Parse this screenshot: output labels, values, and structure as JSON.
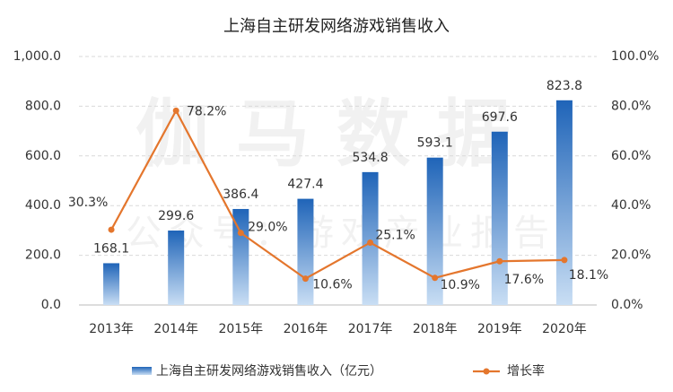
{
  "chart_data": {
    "type": "combo",
    "title": "上海自主研发网络游戏销售收入",
    "watermark": [
      "伽马数据",
      "公众号：游戏产业报告"
    ],
    "categories": [
      "2013年",
      "2014年",
      "2015年",
      "2016年",
      "2017年",
      "2018年",
      "2019年",
      "2020年"
    ],
    "series": [
      {
        "name": "上海自主研发网络游戏销售收入（亿元）",
        "type": "bar",
        "color": "#1f64b8",
        "values": [
          168.1,
          299.6,
          386.4,
          427.4,
          534.8,
          593.1,
          697.6,
          823.8
        ]
      },
      {
        "name": "增长率",
        "type": "line",
        "axis": "y2",
        "color": "#e4762d",
        "values": [
          30.3,
          78.2,
          29.0,
          10.6,
          25.1,
          10.9,
          17.6,
          18.1
        ],
        "value_labels": [
          "30.3%",
          "78.2%",
          "29.0%",
          "10.6%",
          "25.1%",
          "10.9%",
          "17.6%",
          "18.1%"
        ]
      }
    ],
    "ylim": [
      0,
      1000
    ],
    "yticks": [
      {
        "value": 0,
        "label": "0.0"
      },
      {
        "value": 200,
        "label": "200.0"
      },
      {
        "value": 400,
        "label": "400.0"
      },
      {
        "value": 600,
        "label": "600.0"
      },
      {
        "value": 800,
        "label": "800.0"
      },
      {
        "value": 1000,
        "label": "1,000.0"
      }
    ],
    "y2lim": [
      0,
      100
    ],
    "y2ticks": [
      {
        "value": 0,
        "label": "0.0%"
      },
      {
        "value": 20,
        "label": "20.0%"
      },
      {
        "value": 40,
        "label": "40.0%"
      },
      {
        "value": 60,
        "label": "60.0%"
      },
      {
        "value": 80,
        "label": "80.0%"
      },
      {
        "value": 100,
        "label": "100.0%"
      }
    ],
    "grid": true
  }
}
